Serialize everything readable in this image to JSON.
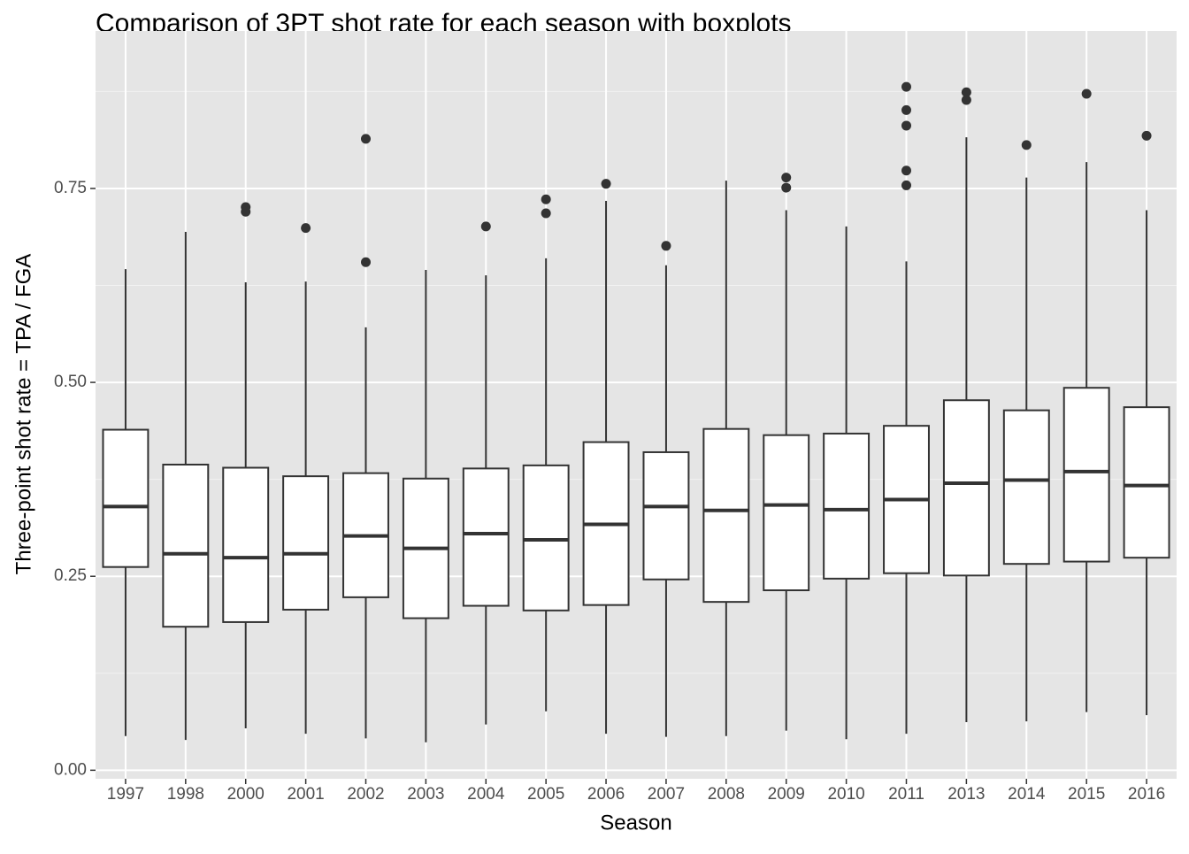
{
  "chart_data": {
    "type": "boxplot",
    "title": "Comparison of 3PT shot rate for each season with boxplots",
    "x_label": "Season",
    "y_label": "Three-point shot rate = TPA / FGA",
    "categories": [
      "1997",
      "1998",
      "2000",
      "2001",
      "2002",
      "2003",
      "2004",
      "2005",
      "2006",
      "2007",
      "2008",
      "2009",
      "2010",
      "2011",
      "2013",
      "2014",
      "2015",
      "2016"
    ],
    "boxes": [
      {
        "low": 0.044,
        "q1": 0.262,
        "median": 0.34,
        "q3": 0.439,
        "high": 0.646,
        "outliers": []
      },
      {
        "low": 0.039,
        "q1": 0.185,
        "median": 0.279,
        "q3": 0.394,
        "high": 0.694,
        "outliers": []
      },
      {
        "low": 0.054,
        "q1": 0.191,
        "median": 0.274,
        "q3": 0.39,
        "high": 0.629,
        "outliers": [
          0.726,
          0.72
        ]
      },
      {
        "low": 0.047,
        "q1": 0.207,
        "median": 0.279,
        "q3": 0.379,
        "high": 0.63,
        "outliers": [
          0.699
        ]
      },
      {
        "low": 0.041,
        "q1": 0.223,
        "median": 0.302,
        "q3": 0.383,
        "high": 0.571,
        "outliers": [
          0.814,
          0.655
        ]
      },
      {
        "low": 0.036,
        "q1": 0.196,
        "median": 0.286,
        "q3": 0.376,
        "high": 0.645,
        "outliers": []
      },
      {
        "low": 0.059,
        "q1": 0.212,
        "median": 0.305,
        "q3": 0.389,
        "high": 0.638,
        "outliers": [
          0.701
        ]
      },
      {
        "low": 0.076,
        "q1": 0.206,
        "median": 0.297,
        "q3": 0.393,
        "high": 0.66,
        "outliers": [
          0.736,
          0.718
        ]
      },
      {
        "low": 0.047,
        "q1": 0.213,
        "median": 0.317,
        "q3": 0.423,
        "high": 0.734,
        "outliers": [
          0.756
        ]
      },
      {
        "low": 0.043,
        "q1": 0.246,
        "median": 0.34,
        "q3": 0.41,
        "high": 0.651,
        "outliers": [
          0.676
        ]
      },
      {
        "low": 0.044,
        "q1": 0.217,
        "median": 0.335,
        "q3": 0.44,
        "high": 0.76,
        "outliers": []
      },
      {
        "low": 0.051,
        "q1": 0.232,
        "median": 0.342,
        "q3": 0.432,
        "high": 0.722,
        "outliers": [
          0.764,
          0.751
        ]
      },
      {
        "low": 0.04,
        "q1": 0.247,
        "median": 0.336,
        "q3": 0.434,
        "high": 0.701,
        "outliers": []
      },
      {
        "low": 0.047,
        "q1": 0.254,
        "median": 0.349,
        "q3": 0.444,
        "high": 0.656,
        "outliers": [
          0.881,
          0.851,
          0.831,
          0.773,
          0.754
        ]
      },
      {
        "low": 0.062,
        "q1": 0.251,
        "median": 0.37,
        "q3": 0.477,
        "high": 0.816,
        "outliers": [
          0.874,
          0.864
        ]
      },
      {
        "low": 0.063,
        "q1": 0.266,
        "median": 0.374,
        "q3": 0.464,
        "high": 0.764,
        "outliers": [
          0.806
        ]
      },
      {
        "low": 0.075,
        "q1": 0.269,
        "median": 0.385,
        "q3": 0.493,
        "high": 0.784,
        "outliers": [
          0.872
        ]
      },
      {
        "low": 0.071,
        "q1": 0.274,
        "median": 0.367,
        "q3": 0.468,
        "high": 0.722,
        "outliers": [
          0.818
        ]
      }
    ],
    "ylim": [
      -0.011,
      0.953
    ],
    "yticks": [
      {
        "value": 0,
        "label": "0.00"
      },
      {
        "value": 0.25,
        "label": "0.25"
      },
      {
        "value": 0.5,
        "label": "0.50"
      },
      {
        "value": 0.75,
        "label": "0.75"
      }
    ],
    "grid": true,
    "color": "#333333",
    "box_fill": "#ffffff",
    "panel_color": "#e5e5e5"
  }
}
